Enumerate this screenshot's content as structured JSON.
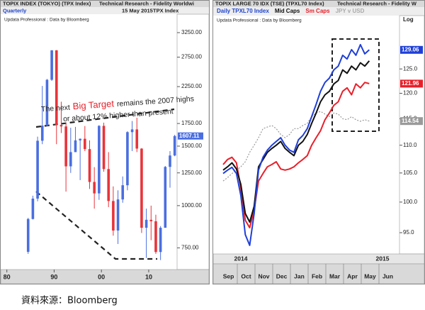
{
  "chart_data": [
    {
      "type": "ohlc",
      "title": "TOPIX INDEX (TOKYO) (TPX Index)",
      "header_right": "Technical Research - Fidelity Worldwi",
      "period": "Quarterly",
      "date": "15 May 2015",
      "ticker": "TPX Index",
      "credit": "Updata Professional : Data by Bloomberg",
      "annotation": [
        "The next",
        "Big Target",
        "remains the 2007 highs",
        "or about 12% higher than present"
      ],
      "annotation_highlight_color": "#e8202a",
      "x": [
        1984.5,
        1985.5,
        1986.5,
        1987.5,
        1988.5,
        1989.5,
        1990.5,
        1991.5,
        1992.5,
        1993.5,
        1994.5,
        1995.5,
        1996.5,
        1997.5,
        1998.5,
        1999.5,
        2000.5,
        2001.5,
        2002.5,
        2003.5,
        2004.5,
        2005.5,
        2006.5,
        2007.5,
        2008.5,
        2009.5,
        2010.5,
        2011.5,
        2012.5,
        2013.5,
        2014.5,
        2015.5
      ],
      "open": [
        730,
        913,
        1049,
        1556,
        1725,
        2357,
        2881,
        1733,
        1715,
        1307,
        1440,
        1560,
        1577,
        1470,
        1175,
        1087,
        1722,
        1283,
        1032,
        844,
        1043,
        1149,
        1650,
        1681,
        1475,
        860,
        908,
        899,
        729,
        860,
        1302,
        1407
      ],
      "high": [
        920,
        1070,
        1600,
        2260,
        2370,
        2885,
        2886,
        2030,
        1760,
        1700,
        1710,
        1580,
        1720,
        1560,
        1300,
        1730,
        1760,
        1440,
        1140,
        1110,
        1220,
        1660,
        1780,
        1820,
        1480,
        980,
        1000,
        940,
        870,
        1310,
        1450,
        1620
      ],
      "low": [
        720,
        910,
        1030,
        1520,
        1720,
        2340,
        1520,
        1640,
        1100,
        1250,
        1440,
        1190,
        1450,
        1120,
        980,
        1040,
        1260,
        990,
        815,
        770,
        1020,
        1110,
        1450,
        1440,
        830,
        700,
        790,
        720,
        690,
        860,
        1130,
        1400
      ],
      "close": [
        913,
        1049,
        1556,
        1725,
        2357,
        2881,
        1733,
        1715,
        1307,
        1440,
        1560,
        1577,
        1470,
        1175,
        1087,
        1722,
        1283,
        1032,
        844,
        1043,
        1149,
        1650,
        1681,
        1475,
        860,
        908,
        899,
        729,
        860,
        1302,
        1407,
        1607.11
      ],
      "up_color": "#4a6ee0",
      "down_color": "#e8333a",
      "xlim": [
        1979,
        2016
      ],
      "xticks": [
        {
          "value": 1980,
          "label": "80"
        },
        {
          "value": 1990,
          "label": "90"
        },
        {
          "value": 2000,
          "label": "00"
        },
        {
          "value": 2010,
          "label": "10"
        }
      ],
      "ylim": [
        650,
        3650
      ],
      "log_y": true,
      "yticks": [
        {
          "value": 750,
          "label": "750.00"
        },
        {
          "value": 1000,
          "label": "1000.00"
        },
        {
          "value": 1250,
          "label": "1250.00"
        },
        {
          "value": 1500,
          "label": "1500.00"
        },
        {
          "value": 1750,
          "label": "1750.00"
        },
        {
          "value": 2250,
          "label": "2250.00"
        },
        {
          "value": 2750,
          "label": "2750.00"
        },
        {
          "value": 3250,
          "label": "3250.00"
        }
      ]
    },
    {
      "type": "line",
      "title": "TOPIX LARGE 70 IDX (TSE) (TPXL70 Index)",
      "header_right": "Technical Research - Fidelity W",
      "credit": "Updata Professional : Data by Bloomberg",
      "scale_label": "Log",
      "log_y": true,
      "x": [
        0.2,
        0.45,
        0.7,
        0.95,
        1.2,
        1.45,
        1.7,
        1.95,
        2.2,
        2.45,
        2.7,
        2.95,
        3.2,
        3.45,
        3.7,
        3.95,
        4.2,
        4.45,
        4.7,
        4.95,
        5.2,
        5.45,
        5.7,
        5.95,
        6.2,
        6.45,
        6.7,
        6.95,
        7.2,
        7.45,
        7.7,
        7.95,
        8.2,
        8.45
      ],
      "xlim": [
        0,
        10
      ],
      "xticks": [
        {
          "value": 0.5,
          "label": "Sep"
        },
        {
          "value": 1.5,
          "label": "Oct"
        },
        {
          "value": 2.5,
          "label": "Nov"
        },
        {
          "value": 3.5,
          "label": "Dec"
        },
        {
          "value": 4.5,
          "label": "Jan"
        },
        {
          "value": 5.5,
          "label": "Feb"
        },
        {
          "value": 6.5,
          "label": "Mar"
        },
        {
          "value": 7.5,
          "label": "Apr"
        },
        {
          "value": 8.5,
          "label": "May"
        },
        {
          "value": 9.5,
          "label": "Jun"
        }
      ],
      "year_labels": [
        {
          "value": 1.2,
          "label": "2014"
        },
        {
          "value": 9.2,
          "label": "2015"
        }
      ],
      "ylim": [
        92,
        133
      ],
      "yticks": [
        {
          "value": 95,
          "label": "95.0"
        },
        {
          "value": 100,
          "label": "100.0"
        },
        {
          "value": 105,
          "label": "105.0"
        },
        {
          "value": 110,
          "label": "110.0"
        },
        {
          "value": 115,
          "label": "115.0"
        },
        {
          "value": 120,
          "label": "120.0"
        },
        {
          "value": 125,
          "label": "125.0"
        }
      ],
      "series": [
        {
          "name": "Daily TPXL70 Index",
          "color": "#111111",
          "label_color": "#1f45d0",
          "end_label": false,
          "values": [
            105.5,
            106.1,
            106.8,
            105.7,
            103.0,
            98.1,
            96.7,
            99.3,
            106.1,
            107.4,
            108.7,
            109.4,
            110.0,
            110.7,
            109.4,
            108.7,
            108.1,
            110.0,
            110.7,
            112.0,
            114.1,
            116.1,
            118.3,
            119.7,
            120.4,
            121.9,
            122.6,
            124.8,
            124.1,
            125.6,
            124.8,
            126.3,
            125.6,
            126.7
          ]
        },
        {
          "name": "Mid Caps",
          "color": "#1f3fd8",
          "label_color": "#111111",
          "end_label": true,
          "values": [
            104.9,
            105.5,
            106.0,
            104.9,
            101.1,
            94.7,
            93.0,
            98.1,
            105.5,
            107.8,
            109.1,
            110.0,
            110.7,
            111.4,
            110.0,
            109.1,
            108.7,
            111.0,
            111.8,
            113.1,
            115.4,
            117.8,
            120.4,
            122.2,
            123.1,
            124.8,
            125.6,
            127.9,
            127.1,
            129.1,
            127.9,
            130.2,
            128.2,
            129.06
          ]
        },
        {
          "name": "Sm Caps",
          "color": "#e8202a",
          "label_color": "#e8202a",
          "end_label": true,
          "values": [
            106.5,
            107.4,
            107.8,
            106.8,
            102.4,
            97.0,
            95.8,
            98.7,
            103.6,
            104.9,
            106.1,
            106.5,
            107.0,
            105.7,
            105.5,
            105.7,
            106.1,
            106.8,
            107.4,
            108.1,
            110.0,
            111.4,
            112.7,
            114.8,
            116.1,
            117.6,
            118.3,
            120.4,
            121.1,
            119.7,
            121.9,
            121.1,
            122.2,
            121.96
          ]
        },
        {
          "name": "JPY v USD",
          "color": "#9a9a9a",
          "label_color": "#aaaaaa",
          "end_label": true,
          "dotted": true,
          "values": [
            103.6,
            104.2,
            104.9,
            105.5,
            106.1,
            107.0,
            108.7,
            110.0,
            111.4,
            113.1,
            113.4,
            113.7,
            113.1,
            112.0,
            111.4,
            112.0,
            113.1,
            113.1,
            113.7,
            114.1,
            115.4,
            116.1,
            116.4,
            115.9,
            115.4,
            116.1,
            115.9,
            115.0,
            114.8,
            115.4,
            114.8,
            114.5,
            114.8,
            114.54
          ]
        }
      ]
    }
  ],
  "source": "資料來源：Bloomberg"
}
